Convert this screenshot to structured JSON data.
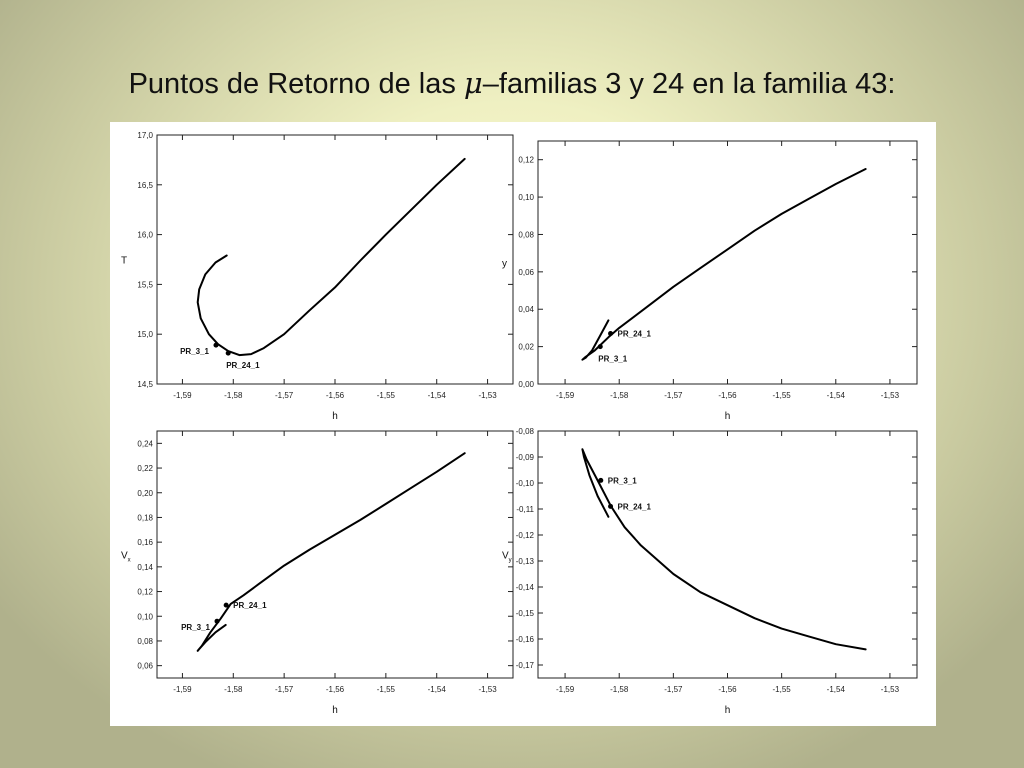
{
  "title": {
    "before": "Puntos de Retorno de las ",
    "symbol": "μ",
    "after": "–familias 3 y 24 en la familia 43:"
  },
  "chart_data": [
    {
      "id": "T",
      "type": "line",
      "xlabel": "h",
      "ylabel": "T",
      "xlim": [
        -1.595,
        -1.525
      ],
      "ylim": [
        14.5,
        17.0
      ],
      "xticks": [
        -1.59,
        -1.58,
        -1.57,
        -1.56,
        -1.55,
        -1.54,
        -1.53
      ],
      "xtick_labels": [
        "-1,59",
        "-1,58",
        "-1,57",
        "-1,56",
        "-1,55",
        "-1,54",
        "-1,53"
      ],
      "yticks": [
        14.5,
        15.0,
        15.5,
        16.0,
        16.5,
        17.0
      ],
      "ytick_labels": [
        "14,5",
        "15,0",
        "15,5",
        "16,0",
        "16,5",
        "17,0"
      ],
      "curve": [
        [
          -1.5813,
          15.79
        ],
        [
          -1.5835,
          15.72
        ],
        [
          -1.5855,
          15.6
        ],
        [
          -1.5867,
          15.45
        ],
        [
          -1.587,
          15.32
        ],
        [
          -1.5864,
          15.16
        ],
        [
          -1.5848,
          15.0
        ],
        [
          -1.583,
          14.9
        ],
        [
          -1.581,
          14.83
        ],
        [
          -1.5788,
          14.79
        ],
        [
          -1.5765,
          14.8
        ],
        [
          -1.574,
          14.86
        ],
        [
          -1.57,
          15.0
        ],
        [
          -1.565,
          15.24
        ],
        [
          -1.56,
          15.47
        ],
        [
          -1.555,
          15.74
        ],
        [
          -1.55,
          16.0
        ],
        [
          -1.545,
          16.25
        ],
        [
          -1.54,
          16.5
        ],
        [
          -1.5345,
          16.76
        ]
      ],
      "points": [
        {
          "label": "PR_3_1",
          "x": -1.5834,
          "y": 14.89,
          "label_pos": "left"
        },
        {
          "label": "PR_24_1",
          "x": -1.581,
          "y": 14.81,
          "label_pos": "below"
        }
      ]
    },
    {
      "id": "y",
      "type": "line",
      "xlabel": "h",
      "ylabel": "y",
      "xlim": [
        -1.595,
        -1.525
      ],
      "ylim": [
        0.0,
        0.13
      ],
      "xticks": [
        -1.59,
        -1.58,
        -1.57,
        -1.56,
        -1.55,
        -1.54,
        -1.53
      ],
      "xtick_labels": [
        "-1,59",
        "-1,58",
        "-1,57",
        "-1,56",
        "-1,55",
        "-1,54",
        "-1,53"
      ],
      "yticks": [
        0.0,
        0.02,
        0.04,
        0.06,
        0.08,
        0.1,
        0.12
      ],
      "ytick_labels": [
        "0,00",
        "0,02",
        "0,04",
        "0,06",
        "0,08",
        "0,10",
        "0,12"
      ],
      "curve": [
        [
          -1.582,
          0.034
        ],
        [
          -1.5835,
          0.026
        ],
        [
          -1.585,
          0.018
        ],
        [
          -1.5862,
          0.014
        ],
        [
          -1.5868,
          0.013
        ],
        [
          -1.5862,
          0.0145
        ],
        [
          -1.5845,
          0.018
        ],
        [
          -1.582,
          0.025
        ],
        [
          -1.58,
          0.03
        ],
        [
          -1.575,
          0.041
        ],
        [
          -1.57,
          0.052
        ],
        [
          -1.565,
          0.062
        ],
        [
          -1.56,
          0.072
        ],
        [
          -1.555,
          0.082
        ],
        [
          -1.55,
          0.091
        ],
        [
          -1.545,
          0.099
        ],
        [
          -1.54,
          0.107
        ],
        [
          -1.5345,
          0.115
        ]
      ],
      "points": [
        {
          "label": "PR_24_1",
          "x": -1.5816,
          "y": 0.027,
          "label_pos": "right"
        },
        {
          "label": "PR_3_1",
          "x": -1.5835,
          "y": 0.02,
          "label_pos": "below"
        }
      ]
    },
    {
      "id": "Vx",
      "type": "line",
      "xlabel": "h",
      "ylabel": "V",
      "ylabel_sub": "x",
      "xlim": [
        -1.595,
        -1.525
      ],
      "ylim": [
        0.05,
        0.25
      ],
      "xticks": [
        -1.59,
        -1.58,
        -1.57,
        -1.56,
        -1.55,
        -1.54,
        -1.53
      ],
      "xtick_labels": [
        "-1,59",
        "-1,58",
        "-1,57",
        "-1,56",
        "-1,55",
        "-1,54",
        "-1,53"
      ],
      "yticks": [
        0.06,
        0.08,
        0.1,
        0.12,
        0.14,
        0.16,
        0.18,
        0.2,
        0.22,
        0.24
      ],
      "ytick_labels": [
        "0,06",
        "0,08",
        "0,10",
        "0,12",
        "0,14",
        "0,16",
        "0,18",
        "0,20",
        "0,22",
        "0,24"
      ],
      "curve": [
        [
          -1.5815,
          0.093
        ],
        [
          -1.5835,
          0.087
        ],
        [
          -1.5855,
          0.079
        ],
        [
          -1.5868,
          0.073
        ],
        [
          -1.587,
          0.072
        ],
        [
          -1.5862,
          0.076
        ],
        [
          -1.5845,
          0.087
        ],
        [
          -1.5825,
          0.098
        ],
        [
          -1.5805,
          0.11
        ],
        [
          -1.578,
          0.117
        ],
        [
          -1.575,
          0.126
        ],
        [
          -1.57,
          0.141
        ],
        [
          -1.565,
          0.154
        ],
        [
          -1.56,
          0.166
        ],
        [
          -1.555,
          0.178
        ],
        [
          -1.55,
          0.191
        ],
        [
          -1.545,
          0.204
        ],
        [
          -1.54,
          0.217
        ],
        [
          -1.5345,
          0.232
        ]
      ],
      "points": [
        {
          "label": "PR_3_1",
          "x": -1.5832,
          "y": 0.096,
          "label_pos": "left"
        },
        {
          "label": "PR_24_1",
          "x": -1.5814,
          "y": 0.109,
          "label_pos": "right"
        }
      ]
    },
    {
      "id": "Vy",
      "type": "line",
      "xlabel": "h",
      "ylabel": "V",
      "ylabel_sub": "y",
      "xlim": [
        -1.595,
        -1.525
      ],
      "ylim": [
        -0.175,
        -0.08
      ],
      "xticks": [
        -1.59,
        -1.58,
        -1.57,
        -1.56,
        -1.55,
        -1.54,
        -1.53
      ],
      "xtick_labels": [
        "-1,59",
        "-1,58",
        "-1,57",
        "-1,56",
        "-1,55",
        "-1,54",
        "-1,53"
      ],
      "yticks": [
        -0.08,
        -0.09,
        -0.1,
        -0.11,
        -0.12,
        -0.13,
        -0.14,
        -0.15,
        -0.16,
        -0.17
      ],
      "ytick_labels": [
        "-0,08",
        "-0,09",
        "-0,10",
        "-0,11",
        "-0,12",
        "-0,13",
        "-0,14",
        "-0,15",
        "-0,16",
        "-0,17"
      ],
      "curve": [
        [
          -1.582,
          -0.113
        ],
        [
          -1.584,
          -0.105
        ],
        [
          -1.5855,
          -0.097
        ],
        [
          -1.5865,
          -0.09
        ],
        [
          -1.5868,
          -0.087
        ],
        [
          -1.586,
          -0.091
        ],
        [
          -1.584,
          -0.099
        ],
        [
          -1.5815,
          -0.109
        ],
        [
          -1.579,
          -0.117
        ],
        [
          -1.576,
          -0.124
        ],
        [
          -1.57,
          -0.135
        ],
        [
          -1.565,
          -0.142
        ],
        [
          -1.56,
          -0.147
        ],
        [
          -1.555,
          -0.152
        ],
        [
          -1.55,
          -0.156
        ],
        [
          -1.545,
          -0.159
        ],
        [
          -1.54,
          -0.162
        ],
        [
          -1.5345,
          -0.164
        ]
      ],
      "points": [
        {
          "label": "PR_3_1",
          "x": -1.5834,
          "y": -0.099,
          "label_pos": "right"
        },
        {
          "label": "PR_24_1",
          "x": -1.5816,
          "y": -0.109,
          "label_pos": "right"
        }
      ]
    }
  ]
}
